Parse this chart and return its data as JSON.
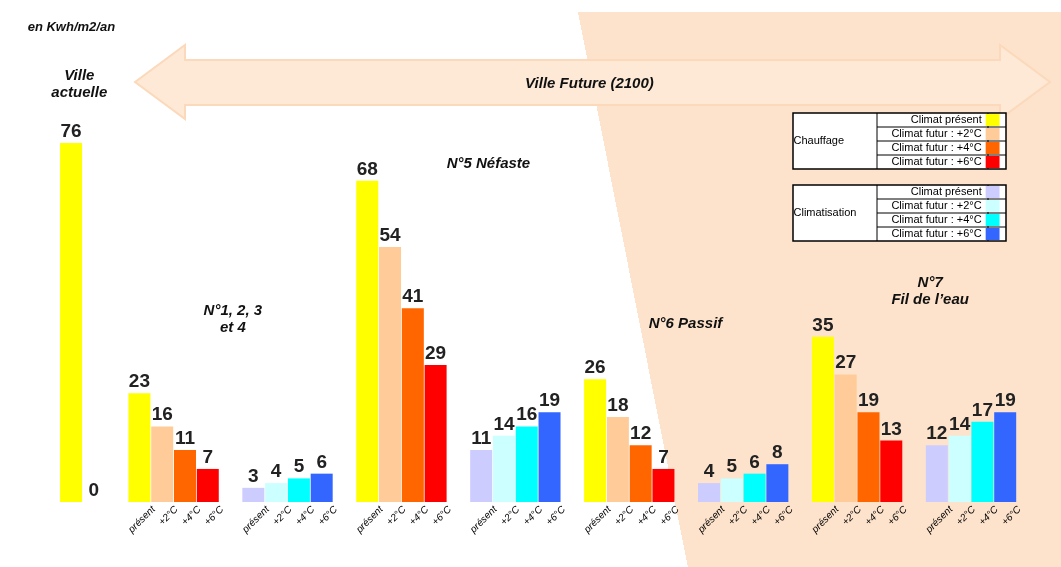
{
  "chart_data": {
    "type": "bar",
    "data_labels": true,
    "legend": "top right",
    "annotations": [
      "en Kwh/m2/an",
      "Ville\nactuelle",
      "Ville Future (2100)",
      "N°1, 2, 3\net 4",
      "N°5  Néfaste",
      "N°6 Passif",
      "N°7\nFil de l’eau",
      "Chauffage",
      "Climatisation"
    ],
    "categories": [
      null,
      null,
      "présent",
      "+2°C",
      "+4°C",
      "+6°C",
      "présent",
      "+2°C",
      "+4°C",
      "+6°C",
      "présent",
      "+2°C",
      "+4°C",
      "+6°C",
      "présent",
      "+2°C",
      "+4°C",
      "+6°C",
      "présent",
      "+2°C",
      "+4°C",
      "+6°C",
      "présent",
      "+2°C",
      "+4°C",
      "+6°C",
      "présent",
      "+2°C",
      "+4°C",
      "+6°C",
      "présent",
      "+2°C",
      "+4°C",
      "+6°C"
    ],
    "series": [
      {
        "name": "Climat présent",
        "color": "#ffff00",
        "values": [
          76,
          null,
          23,
          null,
          null,
          null,
          null,
          null,
          null,
          null,
          68,
          null,
          null,
          null,
          null,
          null,
          null,
          null,
          26,
          null,
          null,
          null,
          null,
          null,
          null,
          null,
          35,
          null,
          null,
          null,
          null,
          null,
          null,
          null
        ]
      },
      {
        "name": "Climat futur : +2°C",
        "color": "#ffcc99",
        "values": [
          null,
          null,
          null,
          16,
          null,
          null,
          null,
          null,
          null,
          null,
          null,
          54,
          null,
          null,
          null,
          null,
          null,
          null,
          null,
          18,
          null,
          null,
          null,
          null,
          null,
          null,
          null,
          27,
          null,
          null,
          null,
          null,
          null,
          null
        ]
      },
      {
        "name": "Climat futur : +4°C",
        "color": "#ff6600",
        "values": [
          null,
          null,
          null,
          null,
          11,
          null,
          null,
          null,
          null,
          null,
          null,
          null,
          41,
          null,
          null,
          null,
          null,
          null,
          null,
          null,
          12,
          null,
          null,
          null,
          null,
          null,
          null,
          null,
          19,
          null,
          null,
          null,
          null,
          null
        ]
      },
      {
        "name": "Climat futur : +6°C",
        "color": "#ff0000",
        "values": [
          null,
          null,
          null,
          null,
          null,
          7,
          null,
          null,
          null,
          null,
          null,
          null,
          null,
          29,
          null,
          null,
          null,
          null,
          null,
          null,
          null,
          7,
          null,
          null,
          null,
          null,
          null,
          null,
          null,
          13,
          null,
          null,
          null,
          null
        ]
      },
      {
        "name": "Climat présent",
        "color": "#ccccff",
        "values": [
          null,
          0,
          null,
          null,
          null,
          null,
          3,
          null,
          null,
          null,
          null,
          null,
          null,
          null,
          11,
          null,
          null,
          null,
          null,
          null,
          null,
          null,
          4,
          null,
          null,
          null,
          null,
          null,
          null,
          null,
          12,
          null,
          null,
          null
        ]
      },
      {
        "name": "Climat futur : +2°C",
        "color": "#ccffff",
        "values": [
          null,
          null,
          null,
          null,
          null,
          null,
          null,
          4,
          null,
          null,
          null,
          null,
          null,
          null,
          null,
          14,
          null,
          null,
          null,
          null,
          null,
          null,
          null,
          5,
          null,
          null,
          null,
          null,
          null,
          null,
          null,
          14,
          null,
          null
        ]
      },
      {
        "name": "Climat futur : +4°C",
        "color": "#00ffff",
        "values": [
          null,
          null,
          null,
          null,
          null,
          null,
          null,
          null,
          5,
          null,
          null,
          null,
          null,
          null,
          null,
          null,
          16,
          null,
          null,
          null,
          null,
          null,
          null,
          null,
          6,
          null,
          null,
          null,
          null,
          null,
          null,
          null,
          17,
          null
        ]
      },
      {
        "name": "Climat futur : +6°C",
        "color": "#3366ff",
        "values": [
          null,
          null,
          null,
          null,
          null,
          null,
          null,
          null,
          null,
          6,
          null,
          null,
          null,
          null,
          null,
          null,
          null,
          19,
          null,
          null,
          null,
          null,
          null,
          null,
          null,
          8,
          null,
          null,
          null,
          null,
          null,
          null,
          null,
          19
        ]
      }
    ]
  }
}
